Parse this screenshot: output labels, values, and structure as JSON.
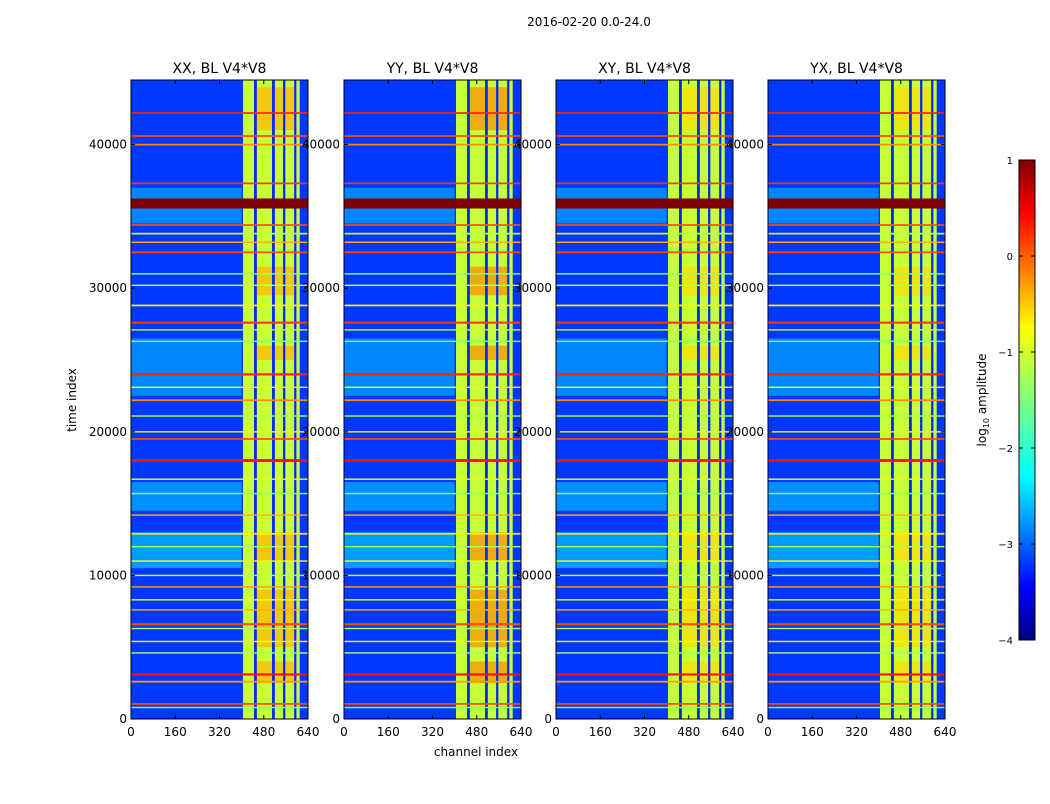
{
  "figure_title": "2016-02-20 0.0-24.0",
  "chart_data": {
    "type": "heatmap",
    "xlabel": "channel index",
    "ylabel": "time index",
    "x_range": [
      0,
      640
    ],
    "y_range": [
      0,
      44500
    ],
    "x_ticks": [
      "0",
      "160",
      "320",
      "480",
      "640"
    ],
    "x_tick_values": [
      0,
      160,
      320,
      480,
      640
    ],
    "y_ticks": [
      "0",
      "10000",
      "20000",
      "30000",
      "40000"
    ],
    "y_tick_values": [
      0,
      10000,
      20000,
      30000,
      40000
    ],
    "panels": [
      {
        "title": "XX, BL V4*V8",
        "bright_band_scale": 0.4
      },
      {
        "title": "YY, BL V4*V8",
        "bright_band_scale": 0.6
      },
      {
        "title": "XY, BL V4*V8",
        "bright_band_scale": 0.2
      },
      {
        "title": "YX, BL V4*V8",
        "bright_band_scale": 0.2
      }
    ],
    "signal_band_channels": [
      405,
      610
    ],
    "gap_channels": [
      445,
      455,
      510,
      520,
      550,
      558,
      590,
      598
    ],
    "rfi_time_rows": [
      {
        "t": 35900,
        "level": 1.0,
        "width": 700,
        "span": "full"
      },
      {
        "t": 42200,
        "level": 0.2,
        "width": 120,
        "span": "full"
      },
      {
        "t": 40600,
        "level": 0.0,
        "width": 120,
        "span": "full"
      },
      {
        "t": 40000,
        "level": -0.3,
        "width": 120,
        "span": "full"
      },
      {
        "t": 37300,
        "level": 0.1,
        "width": 120,
        "span": "full"
      },
      {
        "t": 34400,
        "level": 0.0,
        "width": 120,
        "span": "full"
      },
      {
        "t": 33800,
        "level": -1.2,
        "width": 120,
        "span": "full"
      },
      {
        "t": 33200,
        "level": -0.5,
        "width": 100,
        "span": "full"
      },
      {
        "t": 32500,
        "level": 0.0,
        "width": 120,
        "span": "full"
      },
      {
        "t": 31000,
        "level": -1.4,
        "width": 100,
        "span": "full"
      },
      {
        "t": 30200,
        "level": -1.2,
        "width": 100,
        "span": "full"
      },
      {
        "t": 28800,
        "level": -1.0,
        "width": 120,
        "span": "full"
      },
      {
        "t": 27600,
        "level": 0.1,
        "width": 150,
        "span": "full"
      },
      {
        "t": 27100,
        "level": -1.2,
        "width": 100,
        "span": "full"
      },
      {
        "t": 26300,
        "level": -1.5,
        "width": 100,
        "span": "full"
      },
      {
        "t": 24000,
        "level": 0.2,
        "width": 150,
        "span": "full"
      },
      {
        "t": 23100,
        "level": -1.0,
        "width": 100,
        "span": "full"
      },
      {
        "t": 22200,
        "level": -0.3,
        "width": 120,
        "span": "full"
      },
      {
        "t": 21100,
        "level": -1.3,
        "width": 100,
        "span": "full"
      },
      {
        "t": 20000,
        "level": -1.0,
        "width": 100,
        "span": "full"
      },
      {
        "t": 19500,
        "level": 0.0,
        "width": 120,
        "span": "full"
      },
      {
        "t": 18000,
        "level": 0.3,
        "width": 200,
        "span": "full"
      },
      {
        "t": 16700,
        "level": -1.0,
        "width": 100,
        "span": "full"
      },
      {
        "t": 15700,
        "level": -1.4,
        "width": 100,
        "span": "full"
      },
      {
        "t": 14200,
        "level": -0.5,
        "width": 100,
        "span": "full"
      },
      {
        "t": 12900,
        "level": -0.8,
        "width": 120,
        "span": "full"
      },
      {
        "t": 12000,
        "level": -1.3,
        "width": 100,
        "span": "full"
      },
      {
        "t": 11000,
        "level": -1.0,
        "width": 100,
        "span": "full"
      },
      {
        "t": 10000,
        "level": -1.2,
        "width": 100,
        "span": "full"
      },
      {
        "t": 9200,
        "level": -0.4,
        "width": 100,
        "span": "full"
      },
      {
        "t": 8300,
        "level": -1.0,
        "width": 100,
        "span": "full"
      },
      {
        "t": 7600,
        "level": -0.5,
        "width": 100,
        "span": "full"
      },
      {
        "t": 6600,
        "level": 0.0,
        "width": 150,
        "span": "full"
      },
      {
        "t": 6300,
        "level": -1.3,
        "width": 100,
        "span": "full"
      },
      {
        "t": 5400,
        "level": -1.0,
        "width": 100,
        "span": "full"
      },
      {
        "t": 4600,
        "level": -1.3,
        "width": 100,
        "span": "full"
      },
      {
        "t": 3100,
        "level": 0.3,
        "width": 150,
        "span": "full"
      },
      {
        "t": 2600,
        "level": -0.4,
        "width": 120,
        "span": "full"
      },
      {
        "t": 1050,
        "level": 0.0,
        "width": 120,
        "span": "full"
      },
      {
        "t": 800,
        "level": -1.4,
        "width": 100,
        "span": "full"
      }
    ],
    "colorbar": {
      "label": "log10 amplitude",
      "label_base": "log",
      "label_sub": "10",
      "label_rest": " amplitude",
      "range": [
        -4,
        1
      ],
      "ticks": [
        "1",
        "0",
        "−1",
        "−2",
        "−3",
        "−4"
      ],
      "tick_values": [
        1,
        0,
        -1,
        -2,
        -3,
        -4
      ],
      "colormap": "jet"
    }
  },
  "colors": {
    "jet": [
      "#00007f",
      "#0000ff",
      "#007fff",
      "#00ffff",
      "#7fff7f",
      "#ffff00",
      "#ff7f00",
      "#ff0000",
      "#7f0000"
    ]
  }
}
